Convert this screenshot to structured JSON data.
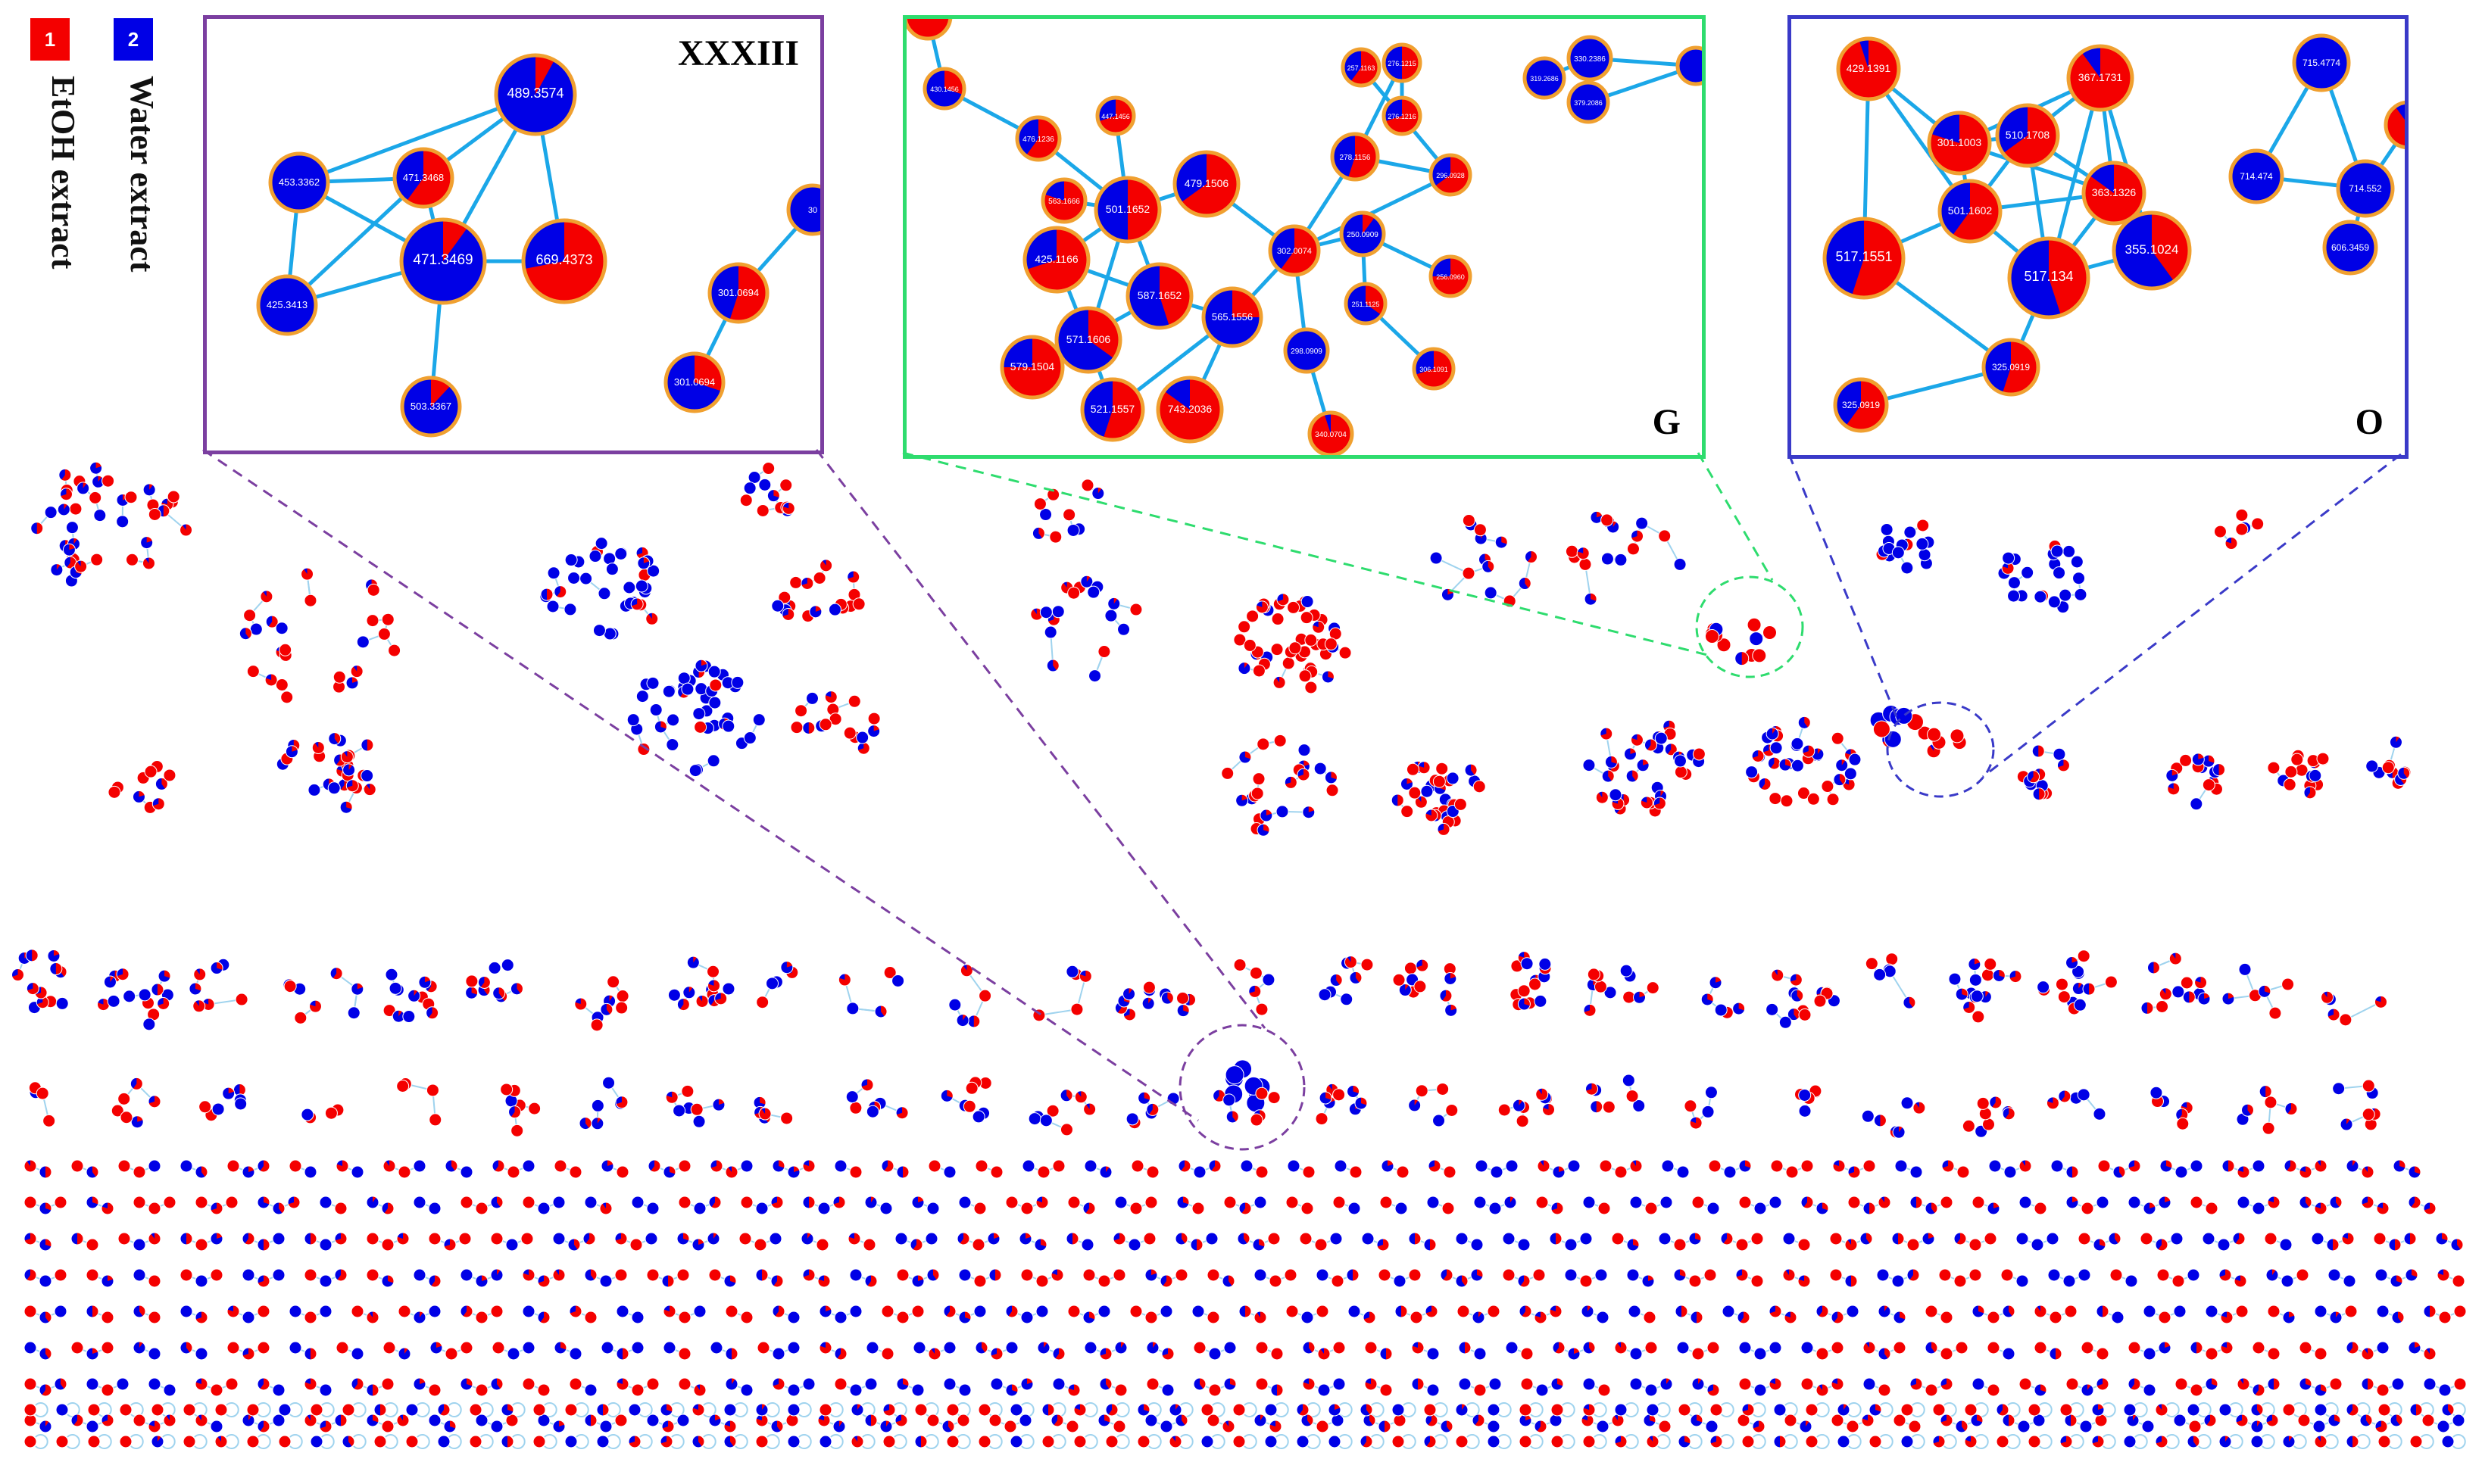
{
  "legend": {
    "group1": {
      "id": "1",
      "label": "EtOH extract",
      "color": "#f40000"
    },
    "group2": {
      "id": "2",
      "label": "Water extract",
      "color": "#0000e6"
    }
  },
  "colors": {
    "edge": "#1ba7e8",
    "node_border": "#f0a030",
    "overview_edge": "#9fd3ee"
  },
  "insets": [
    {
      "key": "xxxiii",
      "title": "XXXIII",
      "frame_color": "#7b3fa0",
      "nodes": [
        {
          "id": "a",
          "label": "489.3574",
          "red": 0.08
        },
        {
          "id": "b",
          "label": "453.3362",
          "red": 0.0
        },
        {
          "id": "c",
          "label": "471.3468",
          "red": 0.6
        },
        {
          "id": "d",
          "label": "471.3469",
          "red": 0.1
        },
        {
          "id": "e",
          "label": "669.4373",
          "red": 0.72
        },
        {
          "id": "f",
          "label": "425.3413",
          "red": 0.0
        },
        {
          "id": "g",
          "label": "503.3367",
          "red": 0.12
        },
        {
          "id": "h",
          "label": "301.0694",
          "red": 0.55
        },
        {
          "id": "i",
          "label": "301.0694",
          "red": 0.3
        },
        {
          "id": "j",
          "label": "30",
          "red": 0.0
        }
      ],
      "edges": [
        [
          "a",
          "b"
        ],
        [
          "a",
          "c"
        ],
        [
          "a",
          "d"
        ],
        [
          "a",
          "e"
        ],
        [
          "b",
          "c"
        ],
        [
          "b",
          "f"
        ],
        [
          "b",
          "d"
        ],
        [
          "c",
          "d"
        ],
        [
          "c",
          "f"
        ],
        [
          "d",
          "f"
        ],
        [
          "d",
          "e"
        ],
        [
          "d",
          "g"
        ],
        [
          "h",
          "i"
        ],
        [
          "h",
          "j"
        ]
      ]
    },
    {
      "key": "g",
      "title": "G",
      "frame_color": "#2edc6e",
      "nodes": [
        {
          "id": "n1",
          "label": "430.1456",
          "red": 0.9
        },
        {
          "id": "n2",
          "label": "430.1456",
          "red": 0.3
        },
        {
          "id": "n3",
          "label": "476.1236",
          "red": 0.6
        },
        {
          "id": "n4",
          "label": "447.1456",
          "red": 0.7
        },
        {
          "id": "n5",
          "label": "563.1666",
          "red": 0.8
        },
        {
          "id": "n6",
          "label": "501.1652",
          "red": 0.5
        },
        {
          "id": "n7",
          "label": "479.1506",
          "red": 0.65
        },
        {
          "id": "n8",
          "label": "425.1166",
          "red": 0.7
        },
        {
          "id": "n9",
          "label": "587.1652",
          "red": 0.45
        },
        {
          "id": "n10",
          "label": "571.1606",
          "red": 0.35
        },
        {
          "id": "n11",
          "label": "565.1556",
          "red": 0.25
        },
        {
          "id": "n12",
          "label": "579.1504",
          "red": 0.75
        },
        {
          "id": "n13",
          "label": "521.1557",
          "red": 0.55
        },
        {
          "id": "n14",
          "label": "743.2036",
          "red": 0.85
        },
        {
          "id": "n15",
          "label": "302.0074",
          "red": 0.6
        },
        {
          "id": "n16",
          "label": "298.0909",
          "red": 0.0
        },
        {
          "id": "n17",
          "label": "340.0704",
          "red": 0.95
        },
        {
          "id": "n18",
          "label": "278.1156",
          "red": 0.55
        },
        {
          "id": "n19",
          "label": "276.1215",
          "red": 0.5
        },
        {
          "id": "n20",
          "label": "276.1216",
          "red": 0.7
        },
        {
          "id": "n21",
          "label": "296.0928",
          "red": 0.65
        },
        {
          "id": "n22",
          "label": "257.1163",
          "red": 0.6
        },
        {
          "id": "n23",
          "label": "250.0909",
          "red": 0.1
        },
        {
          "id": "n24",
          "label": "251.1125",
          "red": 0.35
        },
        {
          "id": "n25",
          "label": "256.0960",
          "red": 0.75
        },
        {
          "id": "n26",
          "label": "306.1091",
          "red": 0.7
        },
        {
          "id": "n27",
          "label": "319.2686",
          "red": 0.0
        },
        {
          "id": "n28",
          "label": "330.2386",
          "red": 0.0
        },
        {
          "id": "n29",
          "label": "379.2086",
          "red": 0.0
        },
        {
          "id": "n30",
          "label": "",
          "red": 0.0
        }
      ],
      "edges": [
        [
          "n1",
          "n2"
        ],
        [
          "n2",
          "n3"
        ],
        [
          "n3",
          "n6"
        ],
        [
          "n4",
          "n6"
        ],
        [
          "n5",
          "n6"
        ],
        [
          "n6",
          "n7"
        ],
        [
          "n6",
          "n8"
        ],
        [
          "n6",
          "n9"
        ],
        [
          "n6",
          "n10"
        ],
        [
          "n8",
          "n9"
        ],
        [
          "n8",
          "n10"
        ],
        [
          "n9",
          "n11"
        ],
        [
          "n9",
          "n12"
        ],
        [
          "n10",
          "n12"
        ],
        [
          "n10",
          "n13"
        ],
        [
          "n11",
          "n13"
        ],
        [
          "n11",
          "n14"
        ],
        [
          "n11",
          "n15"
        ],
        [
          "n7",
          "n15"
        ],
        [
          "n15",
          "n16"
        ],
        [
          "n16",
          "n17"
        ],
        [
          "n15",
          "n18"
        ],
        [
          "n18",
          "n19"
        ],
        [
          "n19",
          "n20"
        ],
        [
          "n18",
          "n21"
        ],
        [
          "n21",
          "n22"
        ],
        [
          "n15",
          "n23"
        ],
        [
          "n23",
          "n24"
        ],
        [
          "n23",
          "n25"
        ],
        [
          "n24",
          "n26"
        ],
        [
          "n15",
          "n21"
        ],
        [
          "n27",
          "n28"
        ],
        [
          "n28",
          "n29"
        ],
        [
          "n28",
          "n30"
        ],
        [
          "n29",
          "n30"
        ]
      ]
    },
    {
      "key": "o",
      "title": "O",
      "frame_color": "#3a3ac8",
      "nodes": [
        {
          "id": "o1",
          "label": "429.1391",
          "red": 0.95
        },
        {
          "id": "o2",
          "label": "367.1731",
          "red": 0.9
        },
        {
          "id": "o3",
          "label": "301.1003",
          "red": 0.8
        },
        {
          "id": "o4",
          "label": "510.1708",
          "red": 0.65
        },
        {
          "id": "o5",
          "label": "363.1326",
          "red": 0.85
        },
        {
          "id": "o6",
          "label": "501.1602",
          "red": 0.6
        },
        {
          "id": "o7",
          "label": "517.1551",
          "red": 0.55
        },
        {
          "id": "o8",
          "label": "517.134",
          "red": 0.45
        },
        {
          "id": "o9",
          "label": "355.1024",
          "red": 0.4
        },
        {
          "id": "o10",
          "label": "325.0919",
          "red": 0.55
        },
        {
          "id": "o11",
          "label": "325.0919",
          "red": 0.6
        },
        {
          "id": "o12",
          "label": "715.4774",
          "red": 0.0
        },
        {
          "id": "o13",
          "label": "714.474",
          "red": 0.0
        },
        {
          "id": "o14",
          "label": "714.552",
          "red": 0.0
        },
        {
          "id": "o15",
          "label": "606.3459",
          "red": 0.0
        },
        {
          "id": "o16",
          "label": "",
          "red": 0.9
        }
      ],
      "edges": [
        [
          "o1",
          "o3"
        ],
        [
          "o1",
          "o6"
        ],
        [
          "o1",
          "o7"
        ],
        [
          "o2",
          "o3"
        ],
        [
          "o2",
          "o4"
        ],
        [
          "o2",
          "o5"
        ],
        [
          "o2",
          "o8"
        ],
        [
          "o2",
          "o9"
        ],
        [
          "o3",
          "o4"
        ],
        [
          "o3",
          "o6"
        ],
        [
          "o3",
          "o5"
        ],
        [
          "o4",
          "o6"
        ],
        [
          "o4",
          "o5"
        ],
        [
          "o4",
          "o8"
        ],
        [
          "o5",
          "o6"
        ],
        [
          "o5",
          "o8"
        ],
        [
          "o6",
          "o7"
        ],
        [
          "o6",
          "o8"
        ],
        [
          "o8",
          "o9"
        ],
        [
          "o8",
          "o10"
        ],
        [
          "o10",
          "o11"
        ],
        [
          "o7",
          "o10"
        ],
        [
          "o12",
          "o13"
        ],
        [
          "o12",
          "o14"
        ],
        [
          "o13",
          "o14"
        ],
        [
          "o14",
          "o15"
        ],
        [
          "o14",
          "o16"
        ]
      ]
    }
  ]
}
